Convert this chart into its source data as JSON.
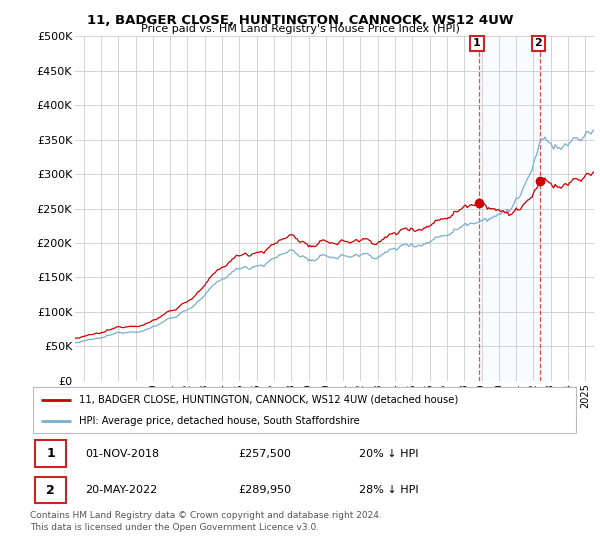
{
  "title": "11, BADGER CLOSE, HUNTINGTON, CANNOCK, WS12 4UW",
  "subtitle": "Price paid vs. HM Land Registry's House Price Index (HPI)",
  "ylim": [
    0,
    500000
  ],
  "yticks": [
    0,
    50000,
    100000,
    150000,
    200000,
    250000,
    300000,
    350000,
    400000,
    450000,
    500000
  ],
  "xlim_start": 1995.5,
  "xlim_end": 2025.5,
  "line1_color": "#cc0000",
  "line2_color": "#7aadcf",
  "sale1_x": 2018.833,
  "sale1_y": 257500,
  "sale2_x": 2022.38,
  "sale2_y": 289950,
  "legend_label1": "11, BADGER CLOSE, HUNTINGTON, CANNOCK, WS12 4UW (detached house)",
  "legend_label2": "HPI: Average price, detached house, South Staffordshire",
  "table_row1_num": "1",
  "table_row1_date": "01-NOV-2018",
  "table_row1_price": "£257,500",
  "table_row1_hpi": "20% ↓ HPI",
  "table_row2_num": "2",
  "table_row2_date": "20-MAY-2022",
  "table_row2_price": "£289,950",
  "table_row2_hpi": "28% ↓ HPI",
  "footer": "Contains HM Land Registry data © Crown copyright and database right 2024.\nThis data is licensed under the Open Government Licence v3.0.",
  "background_color": "#ffffff",
  "grid_color": "#cccccc",
  "shaded_color": "#ddeeff"
}
